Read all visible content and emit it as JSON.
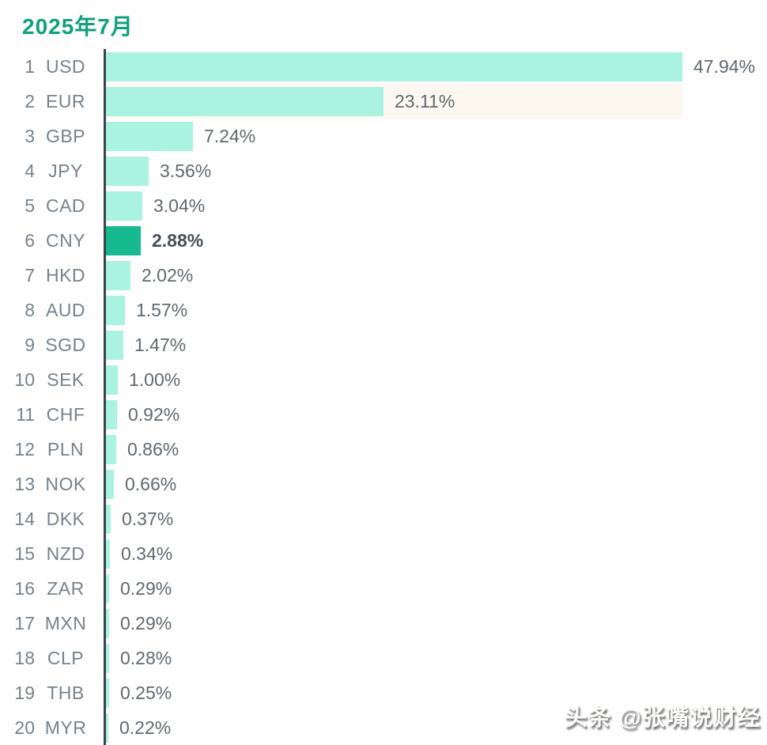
{
  "page": {
    "title": "2025年7月",
    "watermark": "头条 @张嘴说财经"
  },
  "colors": {
    "title_green": "#12a07d",
    "bar_mint": "#a9f3e0",
    "bar_highlight": "#17b98e",
    "axis_line": "#3a444b",
    "label_gray": "#77828b",
    "value_gray": "#61696f",
    "highlight_value_gray": "#474f57",
    "row_band": "#fcf8f0"
  },
  "chart_data": {
    "type": "bar",
    "orientation": "horizontal",
    "title": "2025年7月",
    "ranks": [
      1,
      2,
      3,
      4,
      5,
      6,
      7,
      8,
      9,
      10,
      11,
      12,
      13,
      14,
      15,
      16,
      17,
      18,
      19,
      20
    ],
    "categories": [
      "USD",
      "EUR",
      "GBP",
      "JPY",
      "CAD",
      "CNY",
      "HKD",
      "AUD",
      "SGD",
      "SEK",
      "CHF",
      "PLN",
      "NOK",
      "DKK",
      "NZD",
      "ZAR",
      "MXN",
      "CLP",
      "THB",
      "MYR"
    ],
    "values": [
      47.94,
      23.11,
      7.24,
      3.56,
      3.04,
      2.88,
      2.02,
      1.57,
      1.47,
      1.0,
      0.92,
      0.86,
      0.66,
      0.37,
      0.34,
      0.29,
      0.29,
      0.28,
      0.25,
      0.22
    ],
    "value_labels": [
      "47.94%",
      "23.11%",
      "7.24%",
      "3.56%",
      "3.04%",
      "2.88%",
      "2.02%",
      "1.57%",
      "1.47%",
      "1.00%",
      "0.92%",
      "0.86%",
      "0.66%",
      "0.37%",
      "0.34%",
      "0.29%",
      "0.29%",
      "0.28%",
      "0.25%",
      "0.22%"
    ],
    "highlighted_category": "CNY",
    "highlighted_index": 5,
    "xlim": [
      0,
      50
    ],
    "grid": false,
    "legend": false
  }
}
